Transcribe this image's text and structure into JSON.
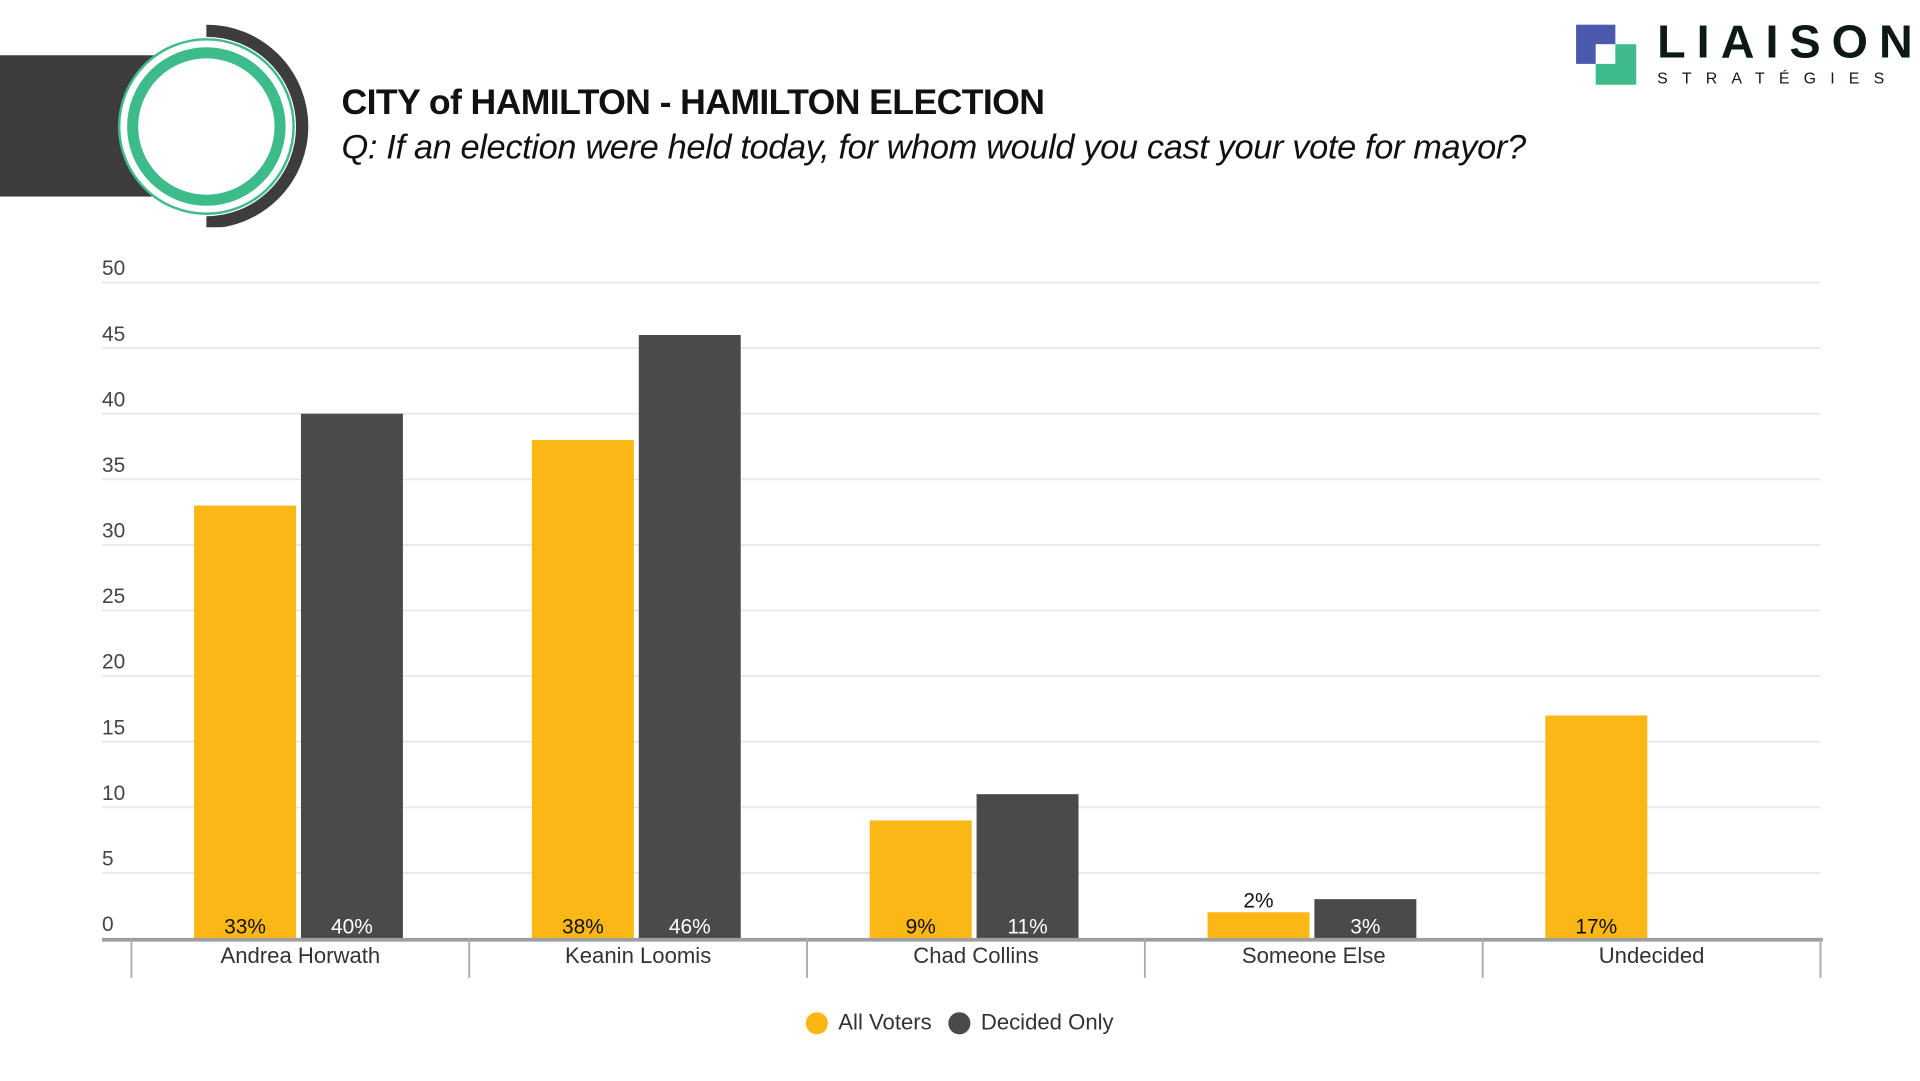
{
  "header": {
    "title": "CITY of HAMILTON - HAMILTON ELECTION",
    "subtitle": "Q: If an election were held today, for whom would you cast your vote for mayor?"
  },
  "logo": {
    "word": "LIAISON",
    "sub": "STRATÉGIES"
  },
  "colors": {
    "all_voters": "#FBB715",
    "decided_only": "#4A4A4A",
    "accent_green": "#3DBB8A",
    "logo_blue": "#4C5AAD"
  },
  "chart_data": {
    "type": "bar",
    "categories": [
      "Andrea Horwath",
      "Keanin Loomis",
      "Chad Collins",
      "Someone Else",
      "Undecided"
    ],
    "series": [
      {
        "name": "All Voters",
        "values": [
          33,
          38,
          9,
          2,
          17
        ],
        "labels": [
          "33%",
          "38%",
          "9%",
          "2%",
          "17%"
        ]
      },
      {
        "name": "Decided Only",
        "values": [
          40,
          46,
          11,
          3,
          null
        ],
        "labels": [
          "40%",
          "46%",
          "11%",
          "3%",
          ""
        ]
      }
    ],
    "ylim": [
      0,
      50
    ],
    "yticks": [
      "0",
      "5",
      "10",
      "15",
      "20",
      "25",
      "30",
      "35",
      "40",
      "45",
      "50"
    ],
    "grid": true,
    "legend": "bottom-center"
  }
}
